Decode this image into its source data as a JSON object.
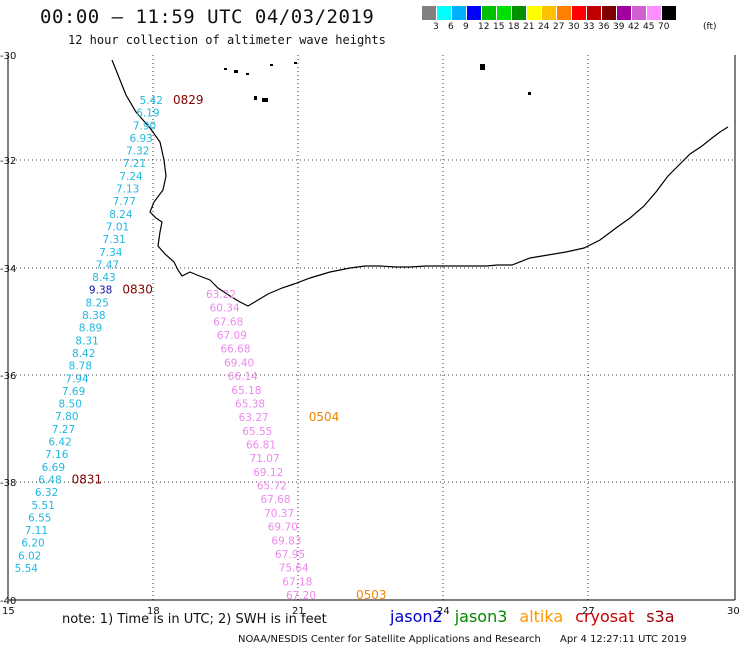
{
  "header": {
    "title": "00:00 – 11:59 UTC 04/03/2019",
    "subtitle": "12 hour collection of altimeter wave heights"
  },
  "legend": {
    "colors": [
      "#808080",
      "#00ffff",
      "#00b0ff",
      "#0000ff",
      "#00c000",
      "#00e000",
      "#009000",
      "#ffff00",
      "#ffc000",
      "#ff8000",
      "#ff0000",
      "#c00000",
      "#800000",
      "#a000a0",
      "#d060d0",
      "#ff90ff",
      "#000000"
    ],
    "labels": [
      "3",
      "6",
      "9",
      "12",
      "15",
      "18",
      "21",
      "24",
      "27",
      "30",
      "33",
      "36",
      "39",
      "42",
      "45",
      "70"
    ],
    "unit": "(ft)"
  },
  "axes": {
    "lon_ticks": [
      "15",
      "18",
      "21",
      "24",
      "27",
      "30"
    ],
    "lat_ticks": [
      "-30",
      "-32",
      "-34",
      "-36",
      "-38",
      "-40"
    ]
  },
  "tracks": {
    "cyan": {
      "color": "#20b8e0",
      "values": [
        "5.42",
        "6.19",
        "7.90",
        "6.93",
        "7.32",
        "7.21",
        "7.24",
        "7.13",
        "7.77",
        "8.24",
        "7.01",
        "7.31",
        "7.34",
        "7.47",
        "8.43",
        "9.38",
        "8.25",
        "8.38",
        "8.89",
        "8.31",
        "8.42",
        "8.78",
        "7.94",
        "7.69",
        "8.50",
        "7.80",
        "7.27",
        "6.42",
        "7.16",
        "6.69",
        "6.48",
        "6.32",
        "5.51",
        "6.55",
        "7.11",
        "6.20",
        "6.02",
        "5.54"
      ],
      "time_labels": [
        {
          "text": "0829",
          "index": 0
        },
        {
          "text": "0830",
          "index": 15
        },
        {
          "text": "0831",
          "index": 30
        }
      ]
    },
    "pink": {
      "color": "#ee88ee",
      "values": [
        "63.22",
        "60.34",
        "67.68",
        "67.09",
        "66.68",
        "69.40",
        "66.14",
        "65.18",
        "65.38",
        "63.27",
        "65.55",
        "66.81",
        "71.07",
        "69.12",
        "65.72",
        "67.68",
        "70.37",
        "69.70",
        "69.83",
        "67.95",
        "75.64",
        "67.18",
        "67.20"
      ],
      "time_labels": [
        {
          "text": "0504",
          "index": 9
        },
        {
          "text": "0503",
          "index": 22
        }
      ]
    }
  },
  "note": "note:  1) Time is in UTC;  2) SWH is in feet",
  "satellites": [
    {
      "name": "jason2",
      "color": "#0000cc"
    },
    {
      "name": "jason3",
      "color": "#008800"
    },
    {
      "name": "altika",
      "color": "#ff9900"
    },
    {
      "name": "cryosat",
      "color": "#cc0000"
    },
    {
      "name": "s3a",
      "color": "#990000"
    }
  ],
  "footer": {
    "credit": "NOAA/NESDIS Center for Satellite Applications and Research",
    "timestamp": "Apr  4 12:27:11 UTC 2019"
  }
}
